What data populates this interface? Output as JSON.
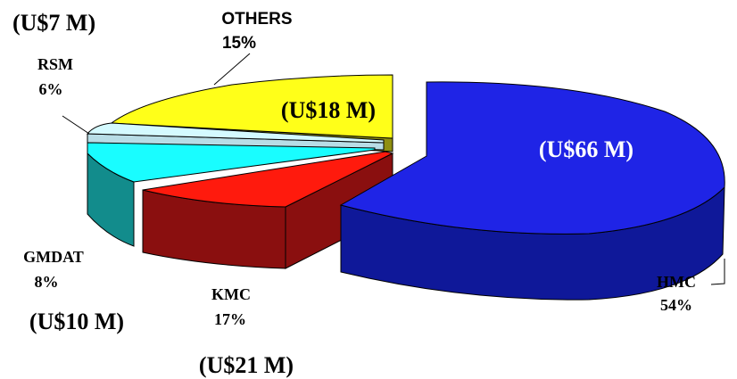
{
  "chart_data": {
    "type": "pie",
    "title": "",
    "slices": [
      {
        "name": "HMC",
        "percent": "54%",
        "amount": "(U$66 M)",
        "color": "#1f24e6"
      },
      {
        "name": "KMC",
        "percent": "17%",
        "amount": "(U$21 M)",
        "color": "#ff1a0d"
      },
      {
        "name": "GMDAT",
        "percent": "8%",
        "amount": "(U$10 M)",
        "color": "#19fdff"
      },
      {
        "name": "RSM",
        "percent": "6%",
        "amount": "(U$7 M)",
        "color": "#d4faff"
      },
      {
        "name": "OTHERS",
        "percent": "15%",
        "amount": "(U$18 M)",
        "color": "#ffff19"
      }
    ]
  },
  "colors": {
    "hmc_side": "#0f1899",
    "kmc_side": "#8a0f0f",
    "gmdat_side": "#128c8c",
    "rsm_side": "#b8dde6",
    "others_side": "#8f8f10",
    "outline": "#000000"
  }
}
